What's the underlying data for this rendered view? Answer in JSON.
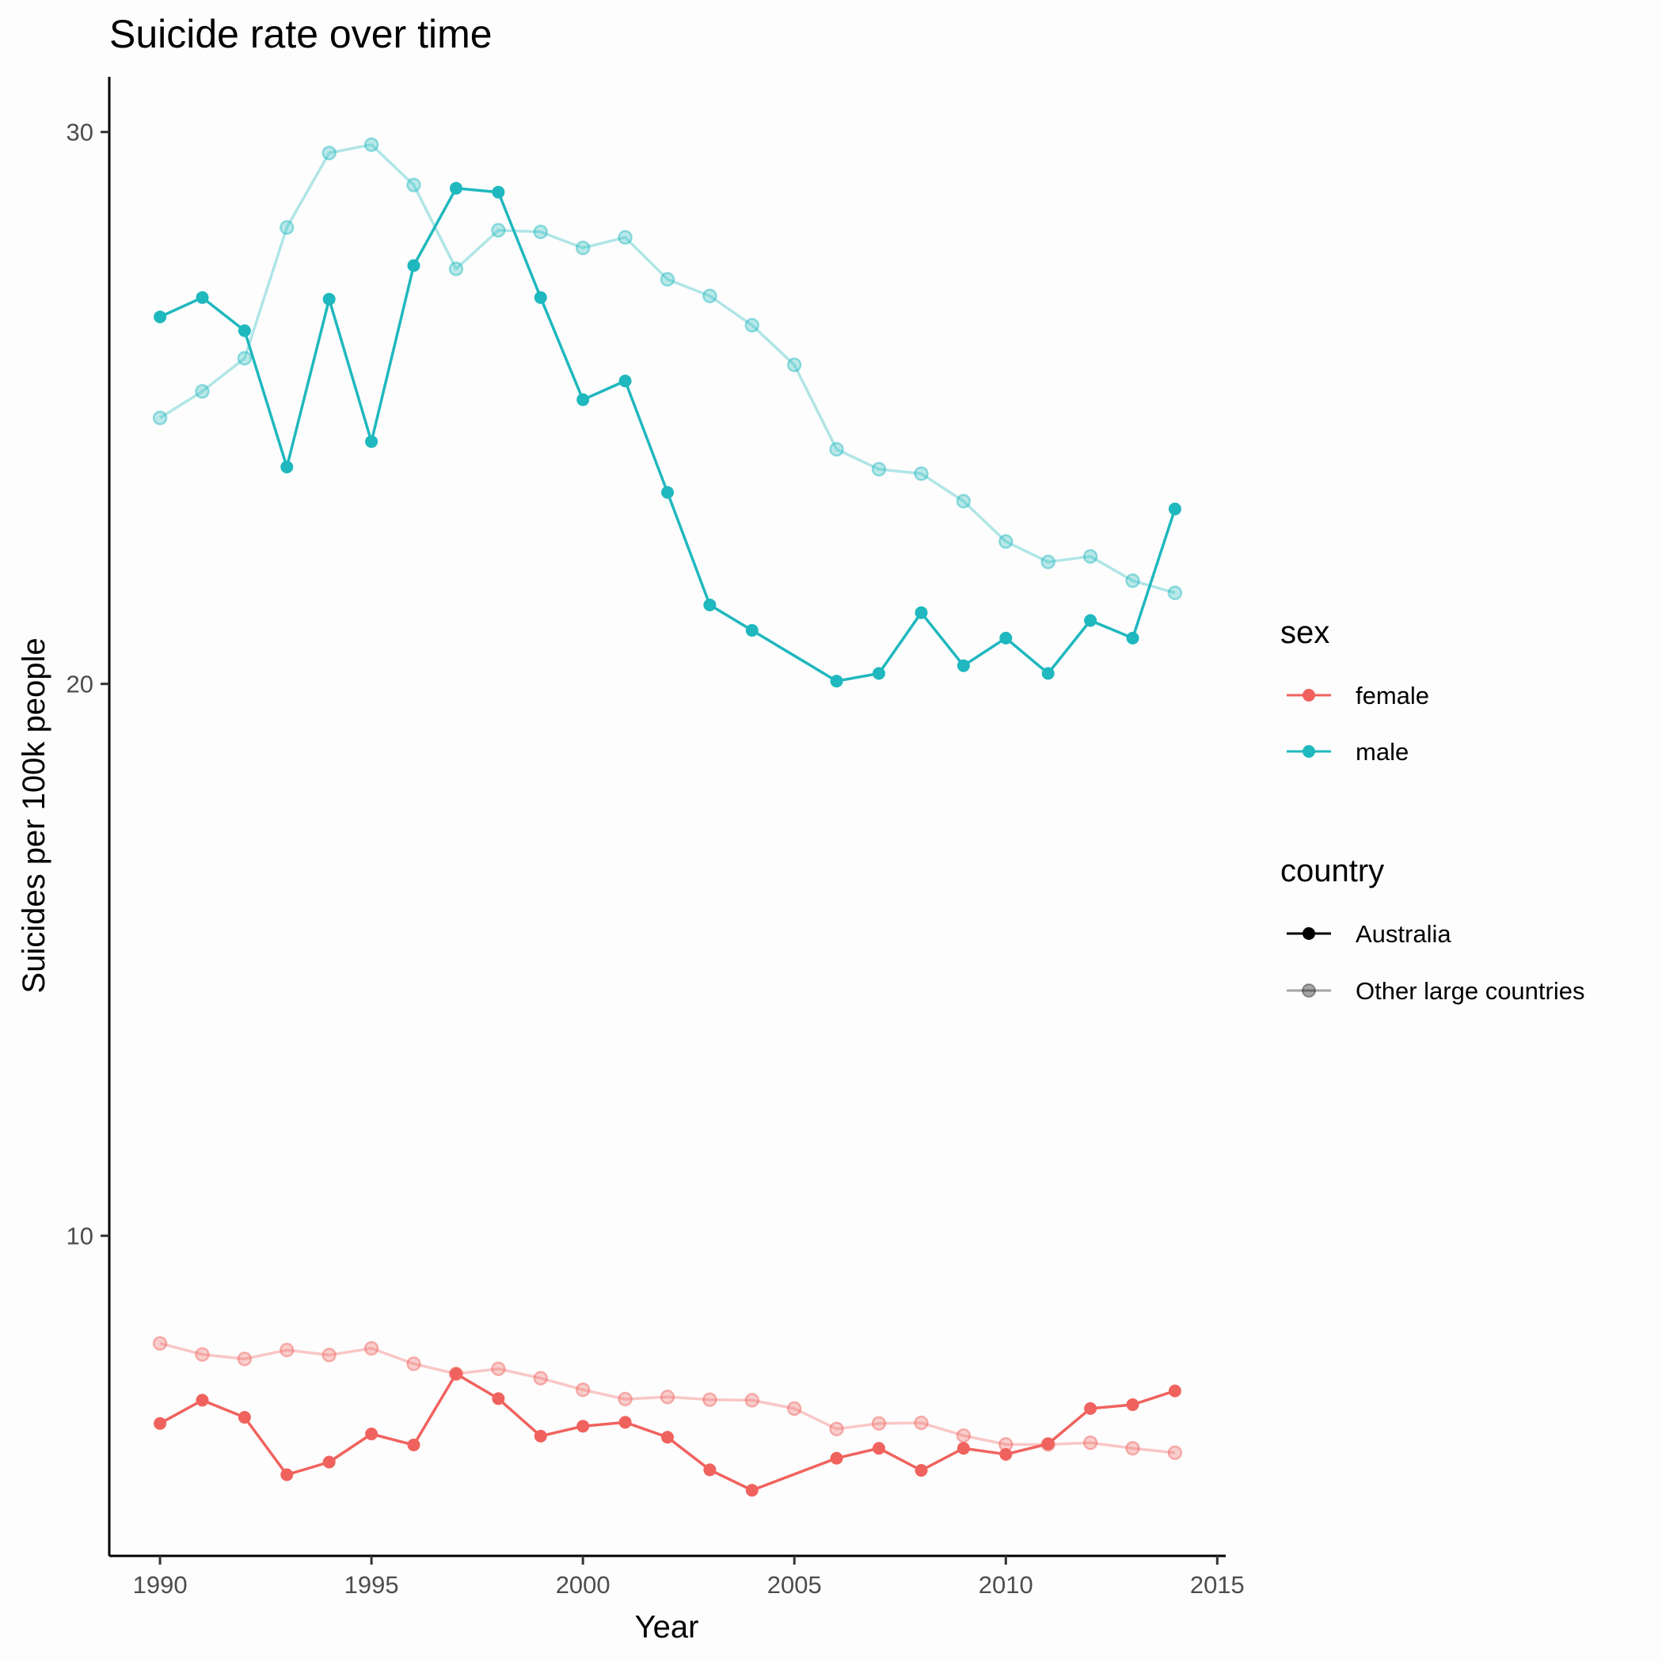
{
  "chart_data": {
    "type": "line",
    "title": "Suicide rate over time",
    "xlabel": "Year",
    "ylabel": "Suicides per 100k people",
    "xlim": [
      1988.8,
      2015.2
    ],
    "ylim": [
      4.2,
      31.0
    ],
    "xticks": [
      1990,
      1995,
      2000,
      2005,
      2010,
      2015
    ],
    "yticks": [
      10,
      20,
      30
    ],
    "grid": false,
    "legend_position": "right",
    "colors": {
      "female": "#f0625e",
      "male": "#1fb8be"
    },
    "legend": {
      "sex": {
        "title": "sex",
        "items": [
          "female",
          "male"
        ]
      },
      "country": {
        "title": "country",
        "items": [
          "Australia",
          "Other large countries"
        ]
      }
    },
    "series": [
      {
        "sex": "male",
        "country": "Australia",
        "x": [
          1990,
          1991,
          1992,
          1993,
          1994,
          1995,
          1996,
          1997,
          1998,
          1999,
          2000,
          2001,
          2002,
          2003,
          2004,
          2006,
          2007,
          2008,
          2009,
          2010,
          2011,
          2012,
          2013,
          2014
        ],
        "y": [
          26.65,
          27.0,
          26.4,
          23.93,
          26.97,
          24.39,
          27.58,
          28.98,
          28.91,
          27.0,
          25.15,
          25.49,
          23.47,
          21.43,
          20.97,
          20.05,
          20.19,
          21.29,
          20.33,
          20.83,
          20.19,
          21.15,
          20.83,
          23.17
        ]
      },
      {
        "sex": "male",
        "country": "Other large countries",
        "x": [
          1990,
          1991,
          1992,
          1993,
          1994,
          1995,
          1996,
          1997,
          1998,
          1999,
          2000,
          2001,
          2002,
          2003,
          2004,
          2005,
          2006,
          2007,
          2008,
          2009,
          2010,
          2011,
          2012,
          2013,
          2014
        ],
        "y": [
          24.82,
          25.3,
          25.9,
          28.27,
          29.62,
          29.77,
          29.04,
          27.52,
          28.22,
          28.19,
          27.9,
          28.09,
          27.33,
          27.03,
          26.5,
          25.78,
          24.25,
          23.89,
          23.81,
          23.31,
          22.58,
          22.21,
          22.31,
          21.87,
          21.65
        ]
      },
      {
        "sex": "female",
        "country": "Australia",
        "x": [
          1990,
          1991,
          1992,
          1993,
          1994,
          1995,
          1996,
          1997,
          1998,
          1999,
          2000,
          2001,
          2002,
          2003,
          2004,
          2006,
          2007,
          2008,
          2009,
          2010,
          2011,
          2012,
          2013,
          2014
        ],
        "y": [
          6.6,
          7.02,
          6.71,
          5.67,
          5.9,
          6.41,
          6.21,
          7.5,
          7.05,
          6.37,
          6.55,
          6.62,
          6.35,
          5.76,
          5.39,
          5.97,
          6.15,
          5.75,
          6.15,
          6.04,
          6.23,
          6.87,
          6.94,
          7.19
        ]
      },
      {
        "sex": "female",
        "country": "Other large countries",
        "x": [
          1990,
          1991,
          1992,
          1993,
          1994,
          1995,
          1996,
          1997,
          1998,
          1999,
          2000,
          2001,
          2002,
          2003,
          2004,
          2005,
          2006,
          2007,
          2008,
          2009,
          2010,
          2011,
          2012,
          2013,
          2014
        ],
        "y": [
          8.05,
          7.85,
          7.77,
          7.93,
          7.84,
          7.96,
          7.68,
          7.5,
          7.59,
          7.42,
          7.21,
          7.04,
          7.08,
          7.03,
          7.02,
          6.87,
          6.5,
          6.6,
          6.61,
          6.38,
          6.22,
          6.22,
          6.25,
          6.15,
          6.07
        ]
      }
    ]
  }
}
